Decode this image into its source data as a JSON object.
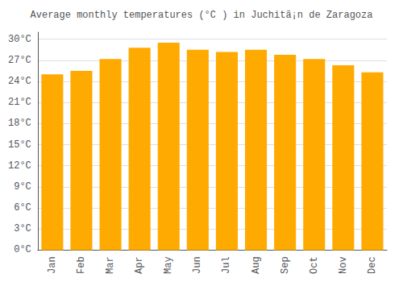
{
  "chart_data": {
    "type": "bar",
    "title": "Average monthly temperatures (°C ) in Juchitã¡n de Zaragoza",
    "categories": [
      "Jan",
      "Feb",
      "Mar",
      "Apr",
      "May",
      "Jun",
      "Jul",
      "Aug",
      "Sep",
      "Oct",
      "Nov",
      "Dec"
    ],
    "values": [
      25.0,
      25.5,
      27.2,
      28.8,
      29.5,
      28.5,
      28.2,
      28.5,
      27.8,
      27.2,
      26.3,
      25.3
    ],
    "color": "#FFAA00",
    "ylim": [
      0,
      31
    ],
    "yticks": [
      {
        "value": 0,
        "label": "0°C"
      },
      {
        "value": 3,
        "label": "3°C"
      },
      {
        "value": 6,
        "label": "6°C"
      },
      {
        "value": 9,
        "label": "9°C"
      },
      {
        "value": 12,
        "label": "12°C"
      },
      {
        "value": 15,
        "label": "15°C"
      },
      {
        "value": 18,
        "label": "18°C"
      },
      {
        "value": 21,
        "label": "21°C"
      },
      {
        "value": 24,
        "label": "24°C"
      },
      {
        "value": 27,
        "label": "27°C"
      },
      {
        "value": 30,
        "label": "30°C"
      }
    ],
    "grid": true
  }
}
